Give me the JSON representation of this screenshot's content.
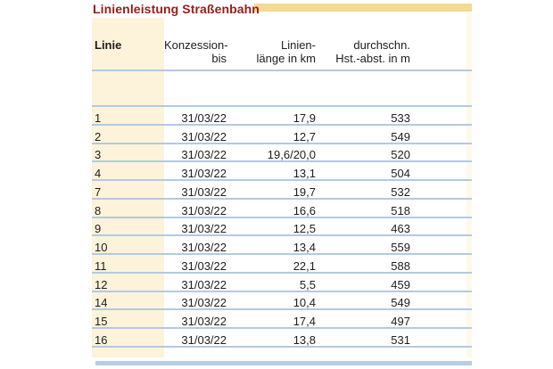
{
  "title": "Linienleistung Straßenbahn",
  "columns": {
    "line": "Linie",
    "concession_l1": "Konzession-",
    "concession_l2": "bis",
    "length_l1": "Linien-",
    "length_l2": "länge in km",
    "distance_l1": "durchschn.",
    "distance_l2": "Hst.-abst. in m"
  },
  "rows": [
    {
      "line": "1",
      "concession": "31/03/22",
      "length": "17,9",
      "distance": "533"
    },
    {
      "line": "2",
      "concession": "31/03/22",
      "length": "12,7",
      "distance": "549"
    },
    {
      "line": "3",
      "concession": "31/03/22",
      "length": "19,6/20,0",
      "distance": "520"
    },
    {
      "line": "4",
      "concession": "31/03/22",
      "length": "13,1",
      "distance": "504"
    },
    {
      "line": "7",
      "concession": "31/03/22",
      "length": "19,7",
      "distance": "532"
    },
    {
      "line": "8",
      "concession": "31/03/22",
      "length": "16,6",
      "distance": "518"
    },
    {
      "line": "9",
      "concession": "31/03/22",
      "length": "12,5",
      "distance": "463"
    },
    {
      "line": "10",
      "concession": "31/03/22",
      "length": "13,4",
      "distance": "559"
    },
    {
      "line": "11",
      "concession": "31/03/22",
      "length": "22,1",
      "distance": "588"
    },
    {
      "line": "12",
      "concession": "31/03/22",
      "length": "5,5",
      "distance": "459"
    },
    {
      "line": "14",
      "concession": "31/03/22",
      "length": "10,4",
      "distance": "549"
    },
    {
      "line": "15",
      "concession": "31/03/22",
      "length": "17,4",
      "distance": "497"
    },
    {
      "line": "16",
      "concession": "31/03/22",
      "length": "13,8",
      "distance": "531"
    }
  ],
  "colors": {
    "title_red": "#9a1b1b",
    "gold_bar": "#f4da92",
    "cream_column": "#fcf3da",
    "cream_faint": "#fdf8ea",
    "rule_blue": "#b4c9e1",
    "rule_blue_strong": "#b7cee5",
    "text": "#1e1e1e"
  }
}
